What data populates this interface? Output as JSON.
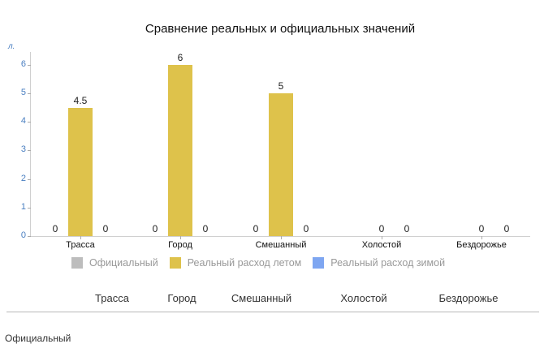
{
  "chart_data": {
    "type": "bar",
    "title": "Сравнение реальных и официальных значений",
    "ylabel": "л.",
    "xlabel": "",
    "ylim": [
      0,
      6
    ],
    "yticks": [
      0,
      1,
      2,
      3,
      4,
      5,
      6
    ],
    "grid": false,
    "legend_position": "bottom",
    "categories": [
      "Трасса",
      "Город",
      "Смешанный",
      "Холостой",
      "Бездорожье"
    ],
    "series": [
      {
        "name": "Официальный",
        "color": "#bdbdbd",
        "values": [
          0,
          0,
          0,
          null,
          null
        ]
      },
      {
        "name": "Реальный расход летом",
        "color": "#dec24b",
        "values": [
          4.5,
          6,
          5,
          0,
          0
        ]
      },
      {
        "name": "Реальный расход зимой",
        "color": "#7ea6f1",
        "values": [
          0,
          0,
          0,
          0,
          0
        ]
      }
    ]
  },
  "table": {
    "headers": [
      "Трасса",
      "Город",
      "Смешанный",
      "Холостой",
      "Бездорожье"
    ],
    "row_label": "Официальный"
  }
}
